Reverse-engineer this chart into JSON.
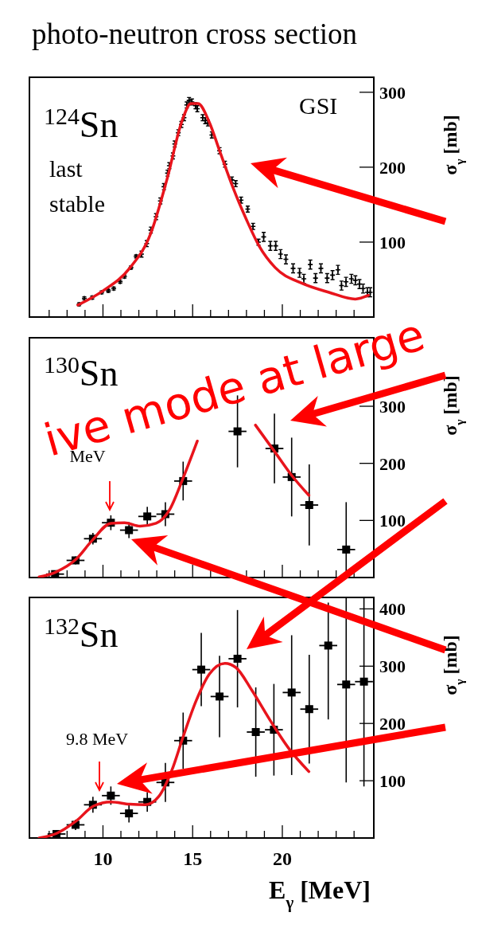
{
  "chart_data": [
    {
      "type": "scatter",
      "title": "photo-neutron cross section",
      "ylabel": "σ$_{γ}$ [mb]",
      "xlim": [
        5.9,
        25.1
      ],
      "ylim": [
        0,
        320
      ],
      "xticks": [
        {
          "value": 7,
          "label": null
        },
        {
          "value": 8,
          "label": null
        },
        {
          "value": 9,
          "label": null
        },
        10,
        {
          "value": 11,
          "label": null
        },
        {
          "value": 12,
          "label": null
        },
        {
          "value": 13,
          "label": null
        },
        {
          "value": 14,
          "label": null
        },
        15,
        {
          "value": 16,
          "label": null
        },
        {
          "value": 17,
          "label": null
        },
        {
          "value": 18,
          "label": null
        },
        {
          "value": 19,
          "label": null
        },
        20,
        {
          "value": 21,
          "label": null
        },
        {
          "value": 22,
          "label": null
        },
        {
          "value": 23,
          "label": null
        },
        {
          "value": 24,
          "label": null
        }
      ],
      "yticks": [
        100,
        200,
        300
      ],
      "tick_labels": "y",
      "marker": "cross",
      "annotations": [
        "$^{124}$Sn",
        "last stable",
        "GSI"
      ],
      "series": [
        {
          "color": "#000000",
          "x": [
            8.67,
            8.96,
            9.4,
            9.93,
            10.3,
            10.6,
            10.96,
            11.2,
            11.56,
            11.85,
            12.15,
            12.44,
            12.67,
            12.96,
            13.2,
            13.4,
            13.6,
            13.7,
            13.9,
            14.0,
            14.2,
            14.37,
            14.52,
            14.67,
            14.8,
            14.96,
            15.16,
            15.26,
            15.56,
            15.7,
            15.85,
            16.07,
            16.5,
            16.8,
            17.19,
            17.4,
            17.7,
            18.07,
            18.37,
            18.67,
            18.96,
            19.33,
            19.63,
            19.9,
            20.2,
            20.6,
            20.96,
            21.2,
            21.56,
            21.85,
            22.15,
            22.5,
            22.8,
            23.1,
            23.3,
            23.55,
            23.85,
            24.07,
            24.3,
            24.5,
            24.74,
            24.9
          ],
          "values": [
            17,
            25,
            26,
            33,
            35,
            38,
            47,
            54,
            66,
            81,
            84,
            98,
            116,
            134,
            155,
            174,
            192,
            202,
            215,
            231,
            246,
            257,
            266,
            283,
            289,
            287,
            282,
            278,
            266,
            262,
            259,
            243,
            222,
            204,
            183,
            178,
            156,
            144,
            121,
            100,
            107,
            95,
            95,
            84,
            77,
            65,
            59,
            51,
            70,
            52,
            65,
            52,
            56,
            63,
            42,
            47,
            51,
            49,
            44,
            38,
            33,
            33
          ],
          "errors": [
            2,
            2,
            2,
            2,
            2,
            2,
            2,
            2,
            2,
            2,
            4,
            4,
            4,
            4,
            4,
            4,
            4,
            4,
            4,
            4,
            4,
            4,
            4,
            4,
            4,
            4,
            4,
            4,
            4,
            4,
            4,
            4,
            4,
            4,
            4,
            4,
            4,
            4,
            4,
            4,
            6,
            6,
            6,
            6,
            6,
            6,
            6,
            6,
            6,
            6,
            6,
            6,
            6,
            6,
            6,
            6,
            6,
            6,
            6,
            6,
            6,
            6
          ]
        },
        {
          "type": "line",
          "marker": "none",
          "color": "#e8141c",
          "x": [
            8.6,
            10,
            11.48,
            12.67,
            13.56,
            14.44,
            14.9,
            15.3,
            15.93,
            16.5,
            17.26,
            18,
            18.7,
            19.6,
            21.1,
            22.6,
            24.07,
            24.8
          ],
          "values": [
            16,
            35,
            65,
            112,
            183,
            264,
            285,
            285,
            260,
            222,
            172,
            130,
            95,
            66,
            45,
            33,
            24,
            29
          ]
        }
      ]
    },
    {
      "type": "scatter",
      "ylabel": "σ$_{γ}$ [mb]",
      "xlim": [
        5.9,
        25.1
      ],
      "ylim": [
        0,
        420
      ],
      "xticks": [
        {
          "value": 7,
          "label": null
        },
        {
          "value": 8,
          "label": null
        },
        {
          "value": 9,
          "label": null
        },
        10,
        {
          "value": 11,
          "label": null
        },
        {
          "value": 12,
          "label": null
        },
        {
          "value": 13,
          "label": null
        },
        {
          "value": 14,
          "label": null
        },
        15,
        {
          "value": 16,
          "label": null
        },
        {
          "value": 17,
          "label": null
        },
        {
          "value": 18,
          "label": null
        },
        {
          "value": 19,
          "label": null
        },
        20,
        {
          "value": 21,
          "label": null
        },
        {
          "value": 22,
          "label": null
        },
        {
          "value": 23,
          "label": null
        },
        {
          "value": 24,
          "label": null
        }
      ],
      "yticks": [
        100,
        200,
        300
      ],
      "tick_labels": "y",
      "marker": "square",
      "annotations": [
        "$^{130}$Sn",
        "ive mode at large",
        "MeV"
      ],
      "series": [
        {
          "color": "#000000",
          "x": [
            7.33,
            8.47,
            9.44,
            10.44,
            11.45,
            12.47,
            13.48,
            14.47,
            17.5,
            19.56,
            20.52,
            21.5,
            23.56
          ],
          "values": [
            6,
            30,
            68,
            96,
            83,
            107,
            111,
            169,
            256,
            226,
            176,
            127,
            49
          ],
          "errors": [
            5,
            7,
            10,
            13,
            14,
            17,
            21,
            34,
            63,
            61,
            69,
            71,
            83
          ],
          "xerrors": [
            0.5,
            0.5,
            0.5,
            0.5,
            0.5,
            0.5,
            0.5,
            0.5,
            0.5,
            0.5,
            0.5,
            0.5,
            0.5
          ]
        },
        {
          "type": "line",
          "marker": "none",
          "color": "#e8141c",
          "x": [
            6.44,
            7.33,
            8.5,
            9.4,
            10.44,
            11.2,
            12.07,
            12.96,
            13.7,
            14.44,
            15.26,
            16.9,
            18.5,
            19.56,
            20.52,
            21.48
          ],
          "values": [
            1,
            9,
            32,
            65,
            95,
            96,
            90,
            95,
            118,
            172,
            239,
            null,
            267,
            221,
            179,
            144
          ]
        }
      ]
    },
    {
      "type": "scatter",
      "ylabel": "σ$_{γ}$ [mb]",
      "xlabel": "E$_{γ}$ [MeV]",
      "xlim": [
        5.9,
        25.1
      ],
      "ylim": [
        0,
        420
      ],
      "xticks": [
        {
          "value": 7,
          "label": null
        },
        {
          "value": 8,
          "label": null
        },
        {
          "value": 9,
          "label": null
        },
        10,
        {
          "value": 11,
          "label": null
        },
        {
          "value": 12,
          "label": null
        },
        {
          "value": 13,
          "label": null
        },
        {
          "value": 14,
          "label": null
        },
        15,
        {
          "value": 16,
          "label": null
        },
        {
          "value": 17,
          "label": null
        },
        {
          "value": 18,
          "label": null
        },
        {
          "value": 19,
          "label": null
        },
        20,
        {
          "value": 21,
          "label": null
        },
        {
          "value": 22,
          "label": null
        },
        {
          "value": 23,
          "label": null
        },
        {
          "value": 24,
          "label": null
        }
      ],
      "yticks": [
        100,
        200,
        300,
        400
      ],
      "marker": "square",
      "annotations": [
        "$^{132}$Sn",
        "9.8 MeV"
      ],
      "series": [
        {
          "color": "#000000",
          "x": [
            7.41,
            8.47,
            9.44,
            10.44,
            11.45,
            12.47,
            13.48,
            14.47,
            15.48,
            16.5,
            17.5,
            18.52,
            19.53,
            20.52,
            21.5,
            22.56,
            23.56,
            24.55
          ],
          "values": [
            7,
            23,
            58,
            74,
            43,
            63,
            97,
            170,
            294,
            247,
            313,
            185,
            189,
            254,
            225,
            336,
            268,
            273
          ],
          "errors": [
            5,
            9,
            14,
            16,
            16,
            17,
            34,
            49,
            64,
            71,
            85,
            78,
            80,
            [
              110,
              354
            ],
            95,
            [
              207,
              411
            ],
            [
              97,
              420
            ],
            [
              90,
              420
            ]
          ],
          "xerrors": [
            0.5,
            0.5,
            0.5,
            0.5,
            0.5,
            0.5,
            0.5,
            0.5,
            0.5,
            0.5,
            0.5,
            0.5,
            0.5,
            0.5,
            0.5,
            0.5,
            0.5,
            0.5
          ]
        },
        {
          "type": "line",
          "marker": "none",
          "color": "#e8141c",
          "x": [
            6.44,
            7.41,
            8.52,
            9.48,
            10.44,
            11.48,
            12.37,
            13.1,
            13.85,
            14.44,
            15.2,
            15.93,
            16.8,
            17.4,
            18.3,
            19.33,
            20.37,
            21.48
          ],
          "values": [
            0,
            8,
            30,
            56,
            63,
            59,
            58,
            72,
            119,
            174,
            240,
            286,
            305,
            298,
            258,
            205,
            156,
            116
          ]
        }
      ]
    }
  ]
}
